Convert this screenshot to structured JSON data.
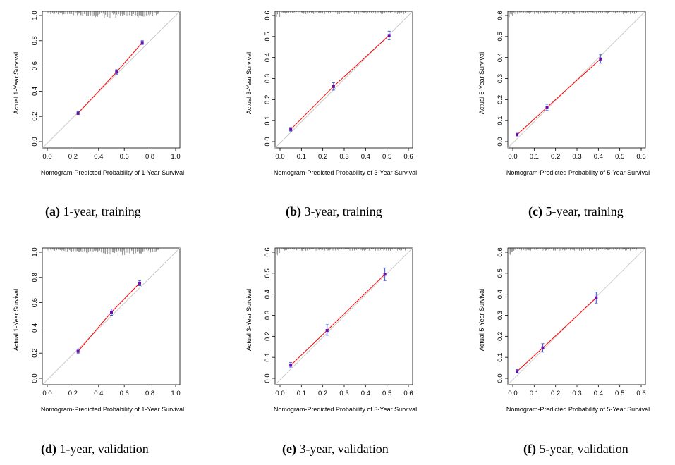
{
  "chart_data": [
    {
      "type": "scatter",
      "id": "a",
      "caption_letter": "(a)",
      "caption_text": "1-year, training",
      "xlabel": "Nomogram-Predicted Probability of 1-Year Survival",
      "ylabel": "Actual 1-Year Survival",
      "xlim": [
        0,
        1.0
      ],
      "ylim": [
        0,
        1.0
      ],
      "ticks": [
        0.0,
        0.2,
        0.4,
        0.6,
        0.8,
        1.0
      ],
      "tick_labels": [
        "0.0",
        "0.2",
        "0.4",
        "0.6",
        "0.8",
        "1.0"
      ],
      "points": [
        {
          "x": 0.24,
          "y": 0.225,
          "lo": 0.215,
          "hi": 0.24
        },
        {
          "x": 0.54,
          "y": 0.552,
          "lo": 0.535,
          "hi": 0.57
        },
        {
          "x": 0.74,
          "y": 0.785,
          "lo": 0.77,
          "hi": 0.8
        }
      ],
      "colors": {
        "ideal": "#cccccc",
        "fit": "#ff0000",
        "errorbar": "#3b5bdb",
        "point": "#6a0dad",
        "rug": "#333333"
      }
    },
    {
      "type": "scatter",
      "id": "b",
      "caption_letter": "(b)",
      "caption_text": "3-year, training",
      "xlabel": "Nomogram-Predicted Probability of 3-Year Survival",
      "ylabel": "Actual 3-Year Survival",
      "xlim": [
        0,
        0.6
      ],
      "ylim": [
        0,
        0.6
      ],
      "ticks": [
        0.0,
        0.1,
        0.2,
        0.3,
        0.4,
        0.5,
        0.6
      ],
      "tick_labels": [
        "0.0",
        "0.1",
        "0.2",
        "0.3",
        "0.4",
        "0.5",
        "0.6"
      ],
      "points": [
        {
          "x": 0.05,
          "y": 0.058,
          "lo": 0.05,
          "hi": 0.067
        },
        {
          "x": 0.25,
          "y": 0.262,
          "lo": 0.245,
          "hi": 0.28
        },
        {
          "x": 0.51,
          "y": 0.505,
          "lo": 0.485,
          "hi": 0.525
        }
      ],
      "colors": {
        "ideal": "#cccccc",
        "fit": "#ff0000",
        "errorbar": "#3b5bdb",
        "point": "#6a0dad",
        "rug": "#333333"
      }
    },
    {
      "type": "scatter",
      "id": "c",
      "caption_letter": "(c)",
      "caption_text": "5-year, training",
      "xlabel": "Nomogram-Predicted Probability of 5-Year Survival",
      "ylabel": "Actual 5-Year Survival",
      "xlim": [
        0,
        0.6
      ],
      "ylim": [
        0,
        0.6
      ],
      "ticks": [
        0.0,
        0.1,
        0.2,
        0.3,
        0.4,
        0.5,
        0.6
      ],
      "tick_labels": [
        "0.0",
        "0.1",
        "0.2",
        "0.3",
        "0.4",
        "0.5",
        "0.6"
      ],
      "points": [
        {
          "x": 0.02,
          "y": 0.033,
          "lo": 0.027,
          "hi": 0.04
        },
        {
          "x": 0.16,
          "y": 0.163,
          "lo": 0.148,
          "hi": 0.178
        },
        {
          "x": 0.41,
          "y": 0.393,
          "lo": 0.373,
          "hi": 0.413
        }
      ],
      "colors": {
        "ideal": "#cccccc",
        "fit": "#ff0000",
        "errorbar": "#3b5bdb",
        "point": "#6a0dad",
        "rug": "#333333"
      }
    },
    {
      "type": "scatter",
      "id": "d",
      "caption_letter": "(d)",
      "caption_text": "1-year, validation",
      "xlabel": "Nomogram-Predicted Probability of 1-Year Survival",
      "ylabel": "Actual 1-Year Survival",
      "xlim": [
        0,
        1.0
      ],
      "ylim": [
        0,
        1.0
      ],
      "ticks": [
        0.0,
        0.2,
        0.4,
        0.6,
        0.8,
        1.0
      ],
      "tick_labels": [
        "0.0",
        "0.2",
        "0.4",
        "0.6",
        "0.8",
        "1.0"
      ],
      "points": [
        {
          "x": 0.24,
          "y": 0.215,
          "lo": 0.2,
          "hi": 0.232
        },
        {
          "x": 0.5,
          "y": 0.525,
          "lo": 0.5,
          "hi": 0.55
        },
        {
          "x": 0.72,
          "y": 0.755,
          "lo": 0.735,
          "hi": 0.775
        }
      ],
      "colors": {
        "ideal": "#cccccc",
        "fit": "#ff0000",
        "errorbar": "#3b5bdb",
        "point": "#6a0dad",
        "rug": "#333333"
      }
    },
    {
      "type": "scatter",
      "id": "e",
      "caption_letter": "(e)",
      "caption_text": "3-year, validation",
      "xlabel": "Nomogram-Predicted Probability of 3-Year Survival",
      "ylabel": "Actual 3-Year Survival",
      "xlim": [
        0,
        0.6
      ],
      "ylim": [
        0,
        0.6
      ],
      "ticks": [
        0.0,
        0.1,
        0.2,
        0.3,
        0.4,
        0.5,
        0.6
      ],
      "tick_labels": [
        "0.0",
        "0.1",
        "0.2",
        "0.3",
        "0.4",
        "0.5",
        "0.6"
      ],
      "points": [
        {
          "x": 0.05,
          "y": 0.062,
          "lo": 0.05,
          "hi": 0.075
        },
        {
          "x": 0.22,
          "y": 0.228,
          "lo": 0.205,
          "hi": 0.255
        },
        {
          "x": 0.49,
          "y": 0.495,
          "lo": 0.465,
          "hi": 0.525
        }
      ],
      "colors": {
        "ideal": "#cccccc",
        "fit": "#ff0000",
        "errorbar": "#3b5bdb",
        "point": "#6a0dad",
        "rug": "#333333"
      }
    },
    {
      "type": "scatter",
      "id": "f",
      "caption_letter": "(f)",
      "caption_text": "5-year, validation",
      "xlabel": "Nomogram-Predicted Probability of 5-Year Survival",
      "ylabel": "Actual 5-Year Survival",
      "xlim": [
        0,
        0.6
      ],
      "ylim": [
        0,
        0.6
      ],
      "ticks": [
        0.0,
        0.1,
        0.2,
        0.3,
        0.4,
        0.5,
        0.6
      ],
      "tick_labels": [
        "0.0",
        "0.1",
        "0.2",
        "0.3",
        "0.4",
        "0.5",
        "0.6"
      ],
      "points": [
        {
          "x": 0.02,
          "y": 0.033,
          "lo": 0.025,
          "hi": 0.042
        },
        {
          "x": 0.14,
          "y": 0.145,
          "lo": 0.125,
          "hi": 0.165
        },
        {
          "x": 0.39,
          "y": 0.383,
          "lo": 0.358,
          "hi": 0.41
        }
      ],
      "colors": {
        "ideal": "#cccccc",
        "fit": "#ff0000",
        "errorbar": "#3b5bdb",
        "point": "#6a0dad",
        "rug": "#333333"
      }
    }
  ]
}
